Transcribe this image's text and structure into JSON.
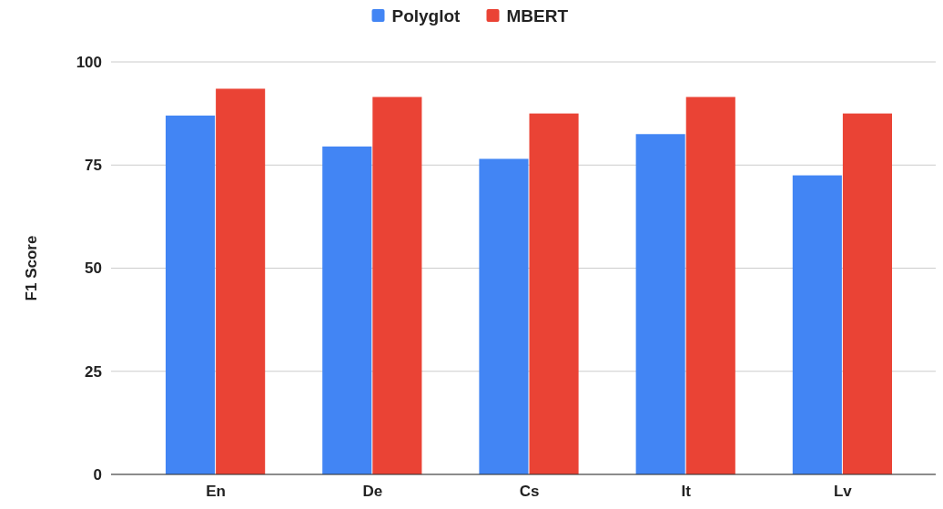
{
  "chart_data": {
    "type": "bar",
    "ylabel": "F1 Score",
    "categories": [
      "En",
      "De",
      "Cs",
      "It",
      "Lv"
    ],
    "series": [
      {
        "name": "Polyglot",
        "color": "#4285f4",
        "values": [
          87,
          79.5,
          76.5,
          82.5,
          72.5
        ]
      },
      {
        "name": "MBERT",
        "color": "#ea4335",
        "values": [
          93.5,
          91.5,
          87.5,
          91.5,
          87.5
        ]
      }
    ],
    "ylim": [
      0,
      100
    ],
    "yticks": [
      0,
      25,
      50,
      75,
      100
    ],
    "grid": "y",
    "legend": "top"
  }
}
